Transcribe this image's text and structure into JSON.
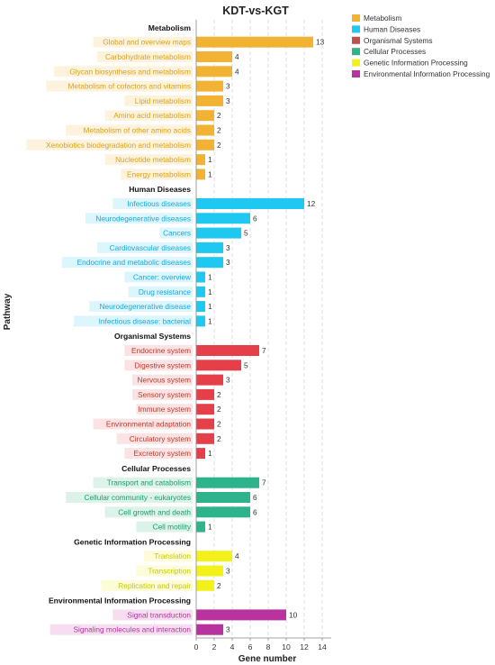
{
  "chart_data": {
    "type": "bar",
    "orientation": "horizontal",
    "title": "KDT-vs-KGT",
    "xlabel": "Gene number",
    "ylabel": "Pathway",
    "xlim": [
      0,
      15
    ],
    "xticks": [
      0,
      2,
      4,
      6,
      8,
      10,
      12,
      14
    ],
    "grid": "vertical dashed",
    "legend_position": "top-right",
    "legend": [
      {
        "name": "Metabolism",
        "color": "#f2b233"
      },
      {
        "name": "Human Diseases",
        "color": "#1ec8f0"
      },
      {
        "name": "Organismal Systems",
        "color": "#c0504d"
      },
      {
        "name": "Cellular Processes",
        "color": "#2eb38a"
      },
      {
        "name": "Genetic Information Processing",
        "color": "#f2f21a"
      },
      {
        "name": "Environmental Information Processing",
        "color": "#b8339e"
      }
    ],
    "groups": [
      {
        "name": "Metabolism",
        "text_color": "#d9a11a",
        "bar_color": "#f2b233",
        "label_bg": "#fdf3dc",
        "items": [
          {
            "label": "Global and overview maps",
            "value": 13
          },
          {
            "label": "Carbohydrate metabolism",
            "value": 4
          },
          {
            "label": "Glycan biosynthesis and metabolism",
            "value": 4
          },
          {
            "label": "Metabolism of cofactors and vitamins",
            "value": 3
          },
          {
            "label": "Lipid metabolism",
            "value": 3
          },
          {
            "label": "Amino acid metabolism",
            "value": 2
          },
          {
            "label": "Metabolism of other amino acids",
            "value": 2
          },
          {
            "label": "Xenobiotics biodegradation and metabolism",
            "value": 2
          },
          {
            "label": "Nucleotide metabolism",
            "value": 1
          },
          {
            "label": "Energy metabolism",
            "value": 1
          }
        ]
      },
      {
        "name": "Human Diseases",
        "text_color": "#1aa8d8",
        "bar_color": "#1ec8f0",
        "label_bg": "#ddf5fc",
        "items": [
          {
            "label": "Infectious diseases",
            "value": 12
          },
          {
            "label": "Neurodegenerative diseases",
            "value": 6
          },
          {
            "label": "Cancers",
            "value": 5
          },
          {
            "label": "Cardiovascular diseases",
            "value": 3
          },
          {
            "label": "Endocrine and metabolic diseases",
            "value": 3
          },
          {
            "label": "Cancer: overview",
            "value": 1
          },
          {
            "label": "Drug resistance",
            "value": 1
          },
          {
            "label": "Neurodegenerative disease",
            "value": 1
          },
          {
            "label": "Infectious disease: bacterial",
            "value": 1
          }
        ]
      },
      {
        "name": "Organismal Systems",
        "text_color": "#c0392b",
        "bar_color": "#e5404a",
        "label_bg": "#fbe3e3",
        "items": [
          {
            "label": "Endocrine system",
            "value": 7
          },
          {
            "label": "Digestive system",
            "value": 5
          },
          {
            "label": "Nervous system",
            "value": 3
          },
          {
            "label": "Sensory system",
            "value": 2
          },
          {
            "label": "Immune system",
            "value": 2
          },
          {
            "label": "Environmental adaptation",
            "value": 2
          },
          {
            "label": "Circulatory system",
            "value": 2
          },
          {
            "label": "Excretory system",
            "value": 1
          }
        ]
      },
      {
        "name": "Cellular Processes",
        "text_color": "#1f9a6e",
        "bar_color": "#2eb38a",
        "label_bg": "#dcf3ea",
        "items": [
          {
            "label": "Transport and catabolism",
            "value": 7
          },
          {
            "label": "Cellular community - eukaryotes",
            "value": 6
          },
          {
            "label": "Cell growth and death",
            "value": 6
          },
          {
            "label": "Cell motility",
            "value": 1
          }
        ]
      },
      {
        "name": "Genetic Information Processing",
        "text_color": "#c8c800",
        "bar_color": "#f2f21a",
        "label_bg": "#fcfcd6",
        "items": [
          {
            "label": "Translation",
            "value": 4
          },
          {
            "label": "Transcription",
            "value": 3
          },
          {
            "label": "Replication and repair",
            "value": 2
          }
        ]
      },
      {
        "name": "Environmental Information Processing",
        "text_color": "#b8339e",
        "bar_color": "#b8339e",
        "label_bg": "#f6def0",
        "items": [
          {
            "label": "Signal transduction",
            "value": 10
          },
          {
            "label": "Signaling molecules and interaction",
            "value": 3
          }
        ]
      }
    ]
  }
}
